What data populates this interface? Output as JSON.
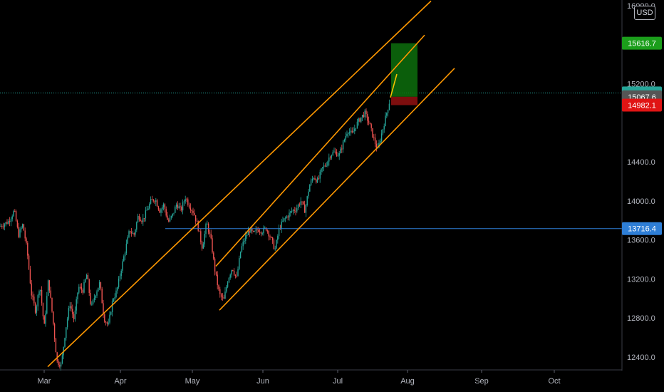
{
  "chart_data": {
    "type": "candlestick",
    "currency": "USD",
    "x_ticks": [
      "Mar",
      "Apr",
      "May",
      "Jun",
      "Jul",
      "Aug",
      "Sep",
      "Oct"
    ],
    "y_ticks": [
      "12400.0",
      "12800.0",
      "13200.0",
      "13600.0",
      "14000.0",
      "14400.0",
      "15200.0",
      "16000.0"
    ],
    "ylim": [
      12260,
      16060
    ],
    "price_badges": [
      {
        "label": "15616.7",
        "value": 15616.7,
        "color": "#1b9e1b"
      },
      {
        "label": "15107.0",
        "value": 15107.0,
        "color": "#26a69a"
      },
      {
        "label": "15067.6",
        "value": 15067.6,
        "color": "#555555"
      },
      {
        "label": "14982.1",
        "value": 14982.1,
        "color": "#e01414"
      },
      {
        "label": "13716.4",
        "value": 13716.4,
        "color": "#2e7ed6"
      }
    ],
    "price_path": [
      [
        0,
        13740
      ],
      [
        12,
        13790
      ],
      [
        20,
        13900
      ],
      [
        26,
        13650
      ],
      [
        32,
        13760
      ],
      [
        38,
        13500
      ],
      [
        44,
        13050
      ],
      [
        50,
        12870
      ],
      [
        56,
        13150
      ],
      [
        62,
        12700
      ],
      [
        68,
        13200
      ],
      [
        74,
        12800
      ],
      [
        80,
        12350
      ],
      [
        86,
        12320
      ],
      [
        92,
        12680
      ],
      [
        98,
        12950
      ],
      [
        104,
        12780
      ],
      [
        110,
        13120
      ],
      [
        116,
        13080
      ],
      [
        122,
        13250
      ],
      [
        128,
        12900
      ],
      [
        134,
        13050
      ],
      [
        140,
        13160
      ],
      [
        146,
        12800
      ],
      [
        152,
        12720
      ],
      [
        158,
        12980
      ],
      [
        164,
        13080
      ],
      [
        170,
        13300
      ],
      [
        176,
        13500
      ],
      [
        182,
        13700
      ],
      [
        188,
        13650
      ],
      [
        194,
        13850
      ],
      [
        200,
        13800
      ],
      [
        206,
        13900
      ],
      [
        212,
        14000
      ],
      [
        218,
        14020
      ],
      [
        224,
        13900
      ],
      [
        230,
        13960
      ],
      [
        236,
        13780
      ],
      [
        242,
        13850
      ],
      [
        248,
        13970
      ],
      [
        254,
        13900
      ],
      [
        260,
        14040
      ],
      [
        266,
        13950
      ],
      [
        272,
        13880
      ],
      [
        278,
        13730
      ],
      [
        284,
        13520
      ],
      [
        290,
        13780
      ],
      [
        296,
        13600
      ],
      [
        302,
        13270
      ],
      [
        308,
        13040
      ],
      [
        314,
        12980
      ],
      [
        320,
        13200
      ],
      [
        326,
        13320
      ],
      [
        332,
        13200
      ],
      [
        338,
        13500
      ],
      [
        344,
        13620
      ],
      [
        350,
        13700
      ],
      [
        356,
        13660
      ],
      [
        362,
        13710
      ],
      [
        368,
        13690
      ],
      [
        374,
        13720
      ],
      [
        380,
        13620
      ],
      [
        386,
        13500
      ],
      [
        392,
        13720
      ],
      [
        398,
        13800
      ],
      [
        404,
        13850
      ],
      [
        410,
        13900
      ],
      [
        416,
        13920
      ],
      [
        422,
        14000
      ],
      [
        428,
        13900
      ],
      [
        434,
        14150
      ],
      [
        440,
        14250
      ],
      [
        446,
        14200
      ],
      [
        452,
        14330
      ],
      [
        458,
        14380
      ],
      [
        464,
        14480
      ],
      [
        470,
        14500
      ],
      [
        476,
        14470
      ],
      [
        482,
        14600
      ],
      [
        488,
        14730
      ],
      [
        494,
        14680
      ],
      [
        500,
        14780
      ],
      [
        506,
        14850
      ],
      [
        512,
        14900
      ],
      [
        518,
        14800
      ],
      [
        524,
        14650
      ],
      [
        530,
        14520
      ],
      [
        536,
        14700
      ],
      [
        542,
        14880
      ],
      [
        548,
        15060
      ]
    ],
    "channels": [
      {
        "name": "outer",
        "color": "#ff9800",
        "points": [
          [
            67,
            12300
          ],
          [
            605,
            16050
          ]
        ]
      },
      {
        "name": "upper",
        "color": "#ff9800",
        "points": [
          [
            303,
            13330
          ],
          [
            596,
            15700
          ]
        ]
      },
      {
        "name": "lower",
        "color": "#ff9800",
        "points": [
          [
            308,
            12880
          ],
          [
            638,
            15360
          ]
        ]
      }
    ],
    "last_bar_extension": [
      [
        548,
        15060
      ],
      [
        557,
        15300
      ]
    ],
    "horizontal_lines": [
      {
        "value": 13716.4,
        "from": 232,
        "color": "#2e7ed6"
      },
      {
        "value": 15107.0,
        "style": "dotted",
        "color": "#26a69a"
      }
    ],
    "position_box": {
      "x_from": 549,
      "x_to": 586,
      "entry": 15067.6,
      "target": 15616.7,
      "stop": 14982.1
    }
  }
}
